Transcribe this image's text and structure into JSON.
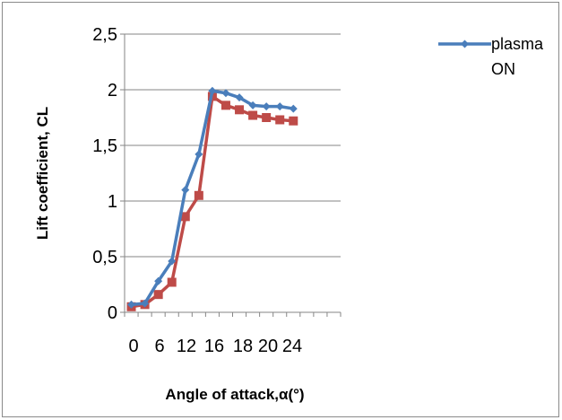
{
  "chart_data": {
    "type": "line",
    "xlabel": "Angle of attack,α(°)",
    "ylabel": "Lift coefficient, CL",
    "ylim": [
      0,
      2.5
    ],
    "yticks": [
      "0",
      "0,5",
      "1",
      "1,5",
      "2",
      "2,5"
    ],
    "xtick_labels": [
      "0",
      "6",
      "12",
      "16",
      "18",
      "20",
      "24"
    ],
    "grid": "horizontal",
    "legend_position": "top-right",
    "x_categories": 16,
    "series": [
      {
        "name": "plasma ON",
        "legend_lines": [
          "plasma",
          "ON"
        ],
        "color": "#4a7ebb",
        "marker": "diamond",
        "values": [
          0.07,
          0.08,
          0.28,
          0.46,
          1.1,
          1.42,
          1.99,
          1.97,
          1.93,
          1.86,
          1.85,
          1.85,
          1.83
        ]
      },
      {
        "name": "",
        "color": "#be4b48",
        "marker": "square",
        "values": [
          0.05,
          0.07,
          0.16,
          0.27,
          0.86,
          1.05,
          1.94,
          1.86,
          1.82,
          1.77,
          1.75,
          1.73,
          1.72
        ]
      }
    ]
  }
}
